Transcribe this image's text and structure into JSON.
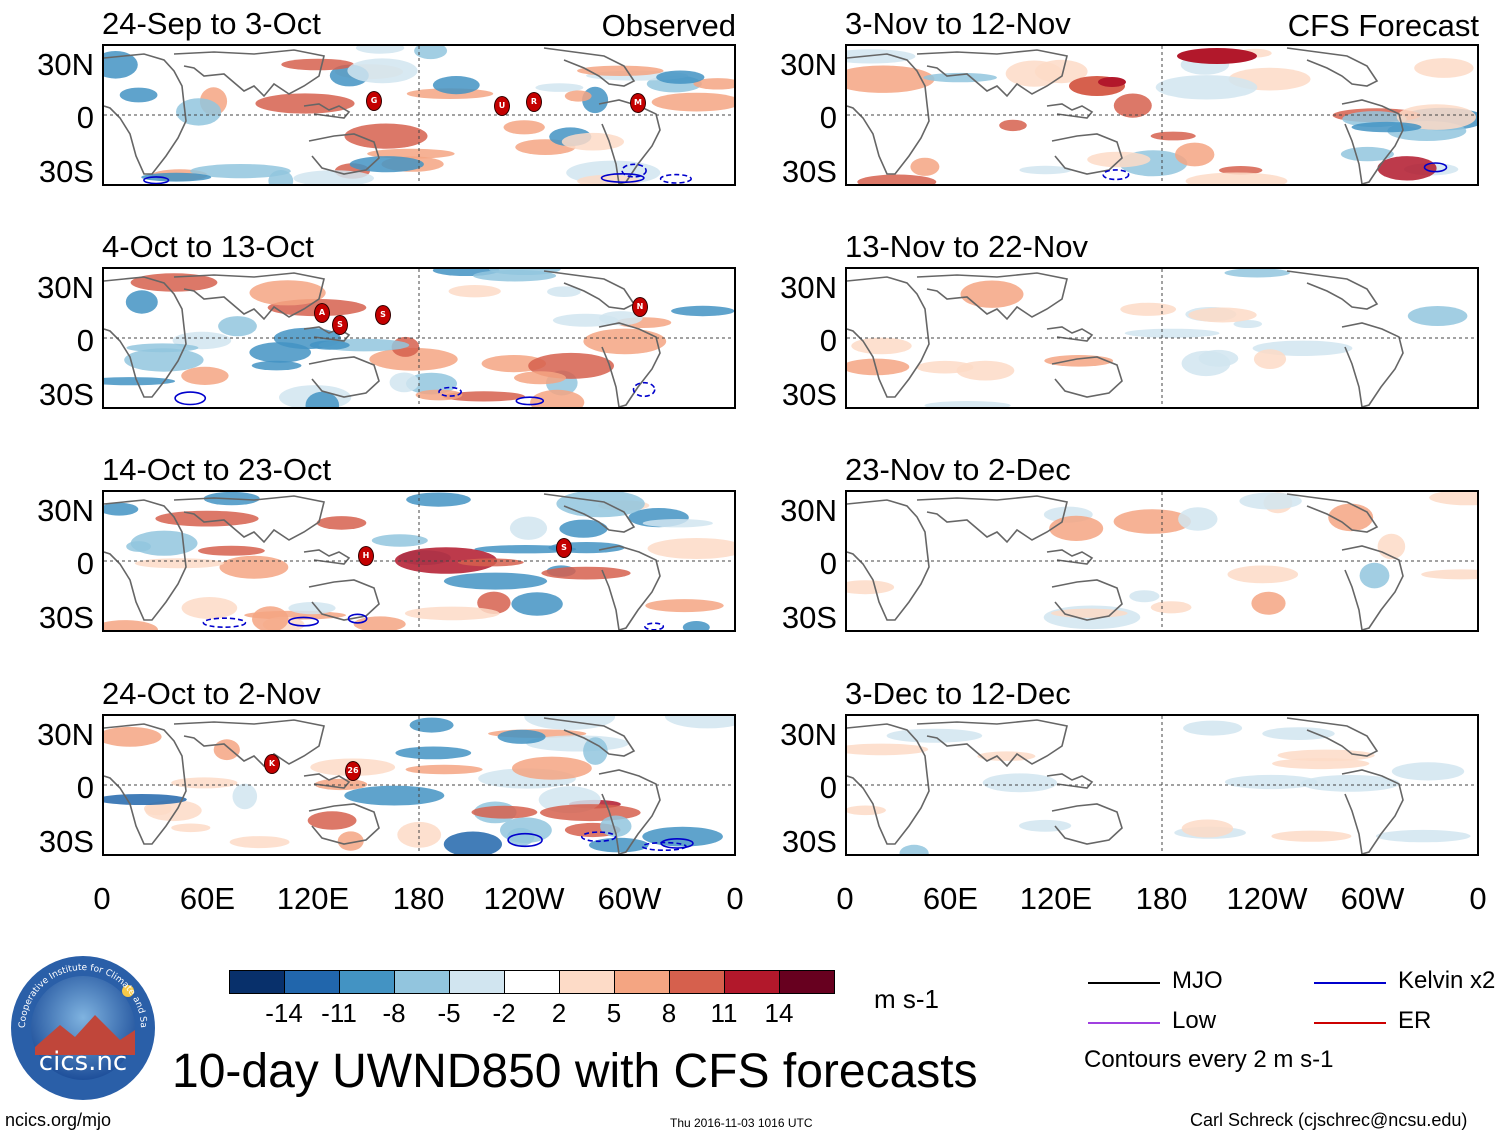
{
  "chart_data": {
    "type": "heatmap",
    "title": "10-day UWND850 with CFS forecasts",
    "variable": "850-hPa zonal wind anomaly",
    "units": "m s-1",
    "column_headers": [
      "Observed",
      "CFS Forecast"
    ],
    "x_tick_labels": [
      "0",
      "60E",
      "120E",
      "180",
      "120W",
      "60W",
      "0"
    ],
    "y_tick_labels": [
      "30N",
      "0",
      "30S"
    ],
    "colorbar": {
      "ticks": [
        "-14",
        "-11",
        "-8",
        "-5",
        "-2",
        "2",
        "5",
        "8",
        "11",
        "14"
      ],
      "colors": [
        "#08306b",
        "#2166ac",
        "#4393c3",
        "#92c5de",
        "#d1e5f0",
        "#ffffff",
        "#fddbc7",
        "#f4a582",
        "#d6604d",
        "#b2182b",
        "#67001f"
      ],
      "units_label": "m s-1"
    },
    "panels": [
      {
        "period": "24-Sep to 3-Oct",
        "source": "Observed",
        "storms": [
          "G",
          "U",
          "R",
          "M"
        ]
      },
      {
        "period": "4-Oct to 13-Oct",
        "source": "Observed",
        "storms": [
          "A",
          "S",
          "S",
          "N"
        ]
      },
      {
        "period": "14-Oct to 23-Oct",
        "source": "Observed",
        "storms": [
          "H",
          "S"
        ]
      },
      {
        "period": "24-Oct to 2-Nov",
        "source": "Observed",
        "storms": [
          "K",
          "26"
        ]
      },
      {
        "period": "3-Nov to 12-Nov",
        "source": "CFS Forecast",
        "storms": []
      },
      {
        "period": "13-Nov to 22-Nov",
        "source": "CFS Forecast",
        "storms": []
      },
      {
        "period": "23-Nov to 2-Dec",
        "source": "CFS Forecast",
        "storms": []
      },
      {
        "period": "3-Dec to 12-Dec",
        "source": "CFS Forecast",
        "storms": []
      }
    ],
    "contour_legend": [
      {
        "label": "MJO",
        "color": "#000000"
      },
      {
        "label": "Kelvin x2",
        "color": "#0000cc"
      },
      {
        "label": "Low",
        "color": "#a040e0"
      },
      {
        "label": "ER",
        "color": "#cc0000"
      }
    ],
    "contour_note": "Contours every 2 m s-1"
  },
  "footer": {
    "logo_text": "cics.nc",
    "logo_ring_text": "Cooperative Institute for Climate and Satellites",
    "url": "ncics.org/mjo",
    "timestamp": "Thu 2016-11-03 1016 UTC",
    "author": "Carl Schreck (cjschrec@ncsu.edu)"
  }
}
